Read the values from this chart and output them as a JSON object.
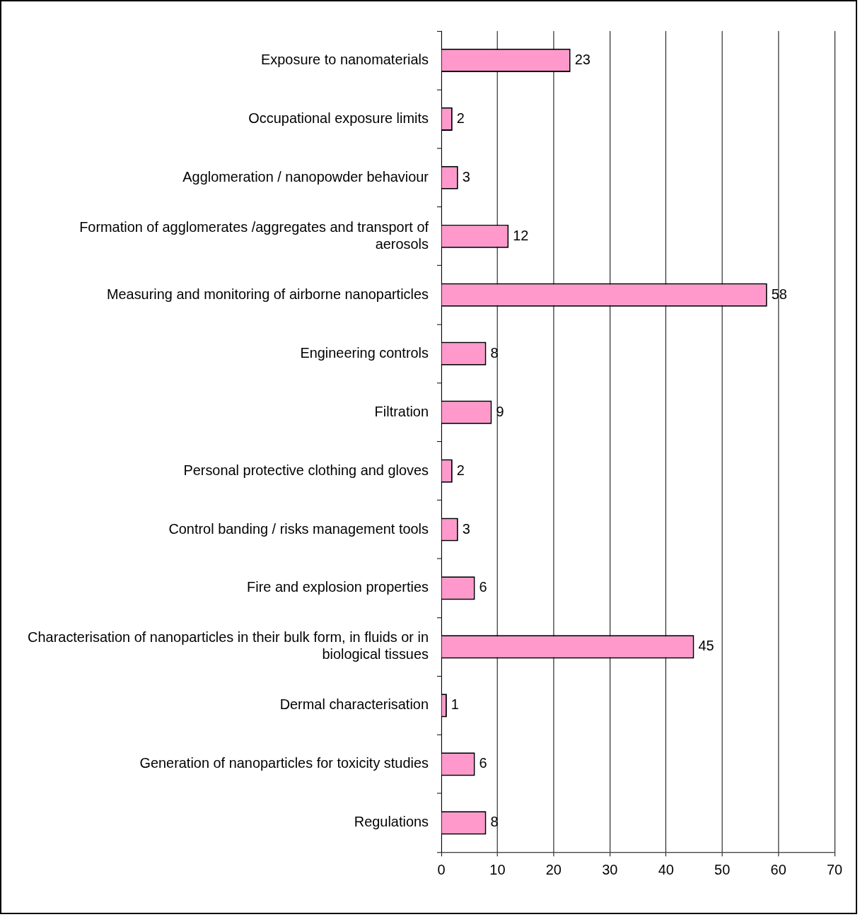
{
  "chart_data": {
    "type": "bar",
    "orientation": "horizontal",
    "categories": [
      "Exposure to nanomaterials",
      "Occupational exposure limits",
      "Agglomeration / nanopowder behaviour",
      "Formation of agglomerates /aggregates and transport of aerosols",
      "Measuring and monitoring of airborne nanoparticles",
      "Engineering controls",
      "Filtration",
      "Personal protective clothing and gloves",
      "Control banding / risks management tools",
      "Fire and explosion properties",
      "Characterisation of nanoparticles in their bulk form, in fluids or in biological tissues",
      "Dermal characterisation",
      "Generation of nanoparticles for toxicity studies",
      "Regulations"
    ],
    "values": [
      23,
      2,
      3,
      12,
      58,
      8,
      9,
      2,
      3,
      6,
      45,
      1,
      6,
      8
    ],
    "color": "#ff99cc",
    "xlim": [
      0,
      70
    ],
    "xticks": [
      0,
      10,
      20,
      30,
      40,
      50,
      60,
      70
    ],
    "grid": "x",
    "data_labels": true
  }
}
